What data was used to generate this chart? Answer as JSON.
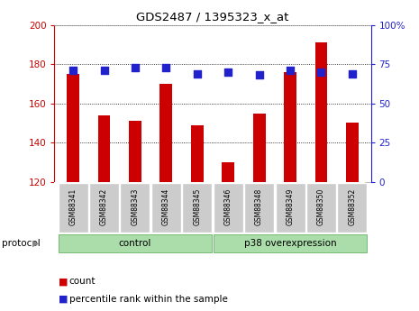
{
  "title": "GDS2487 / 1395323_x_at",
  "samples": [
    "GSM88341",
    "GSM88342",
    "GSM88343",
    "GSM88344",
    "GSM88345",
    "GSM88346",
    "GSM88348",
    "GSM88349",
    "GSM88350",
    "GSM88352"
  ],
  "counts": [
    175,
    154,
    151,
    170,
    149,
    130,
    155,
    176,
    191,
    150
  ],
  "percentiles": [
    71,
    71,
    73,
    73,
    69,
    70,
    68,
    71,
    70,
    69
  ],
  "ylim_left": [
    120,
    200
  ],
  "ylim_right": [
    0,
    100
  ],
  "yticks_left": [
    120,
    140,
    160,
    180,
    200
  ],
  "yticks_right": [
    0,
    25,
    50,
    75,
    100
  ],
  "ytick_labels_right": [
    "0",
    "25",
    "50",
    "75",
    "100%"
  ],
  "bar_color": "#cc0000",
  "dot_color": "#2222cc",
  "control_label": "control",
  "p38_label": "p38 overexpression",
  "protocol_label": "protocol",
  "legend_count": "count",
  "legend_pct": "percentile rank within the sample",
  "group_bg_color": "#aaddaa",
  "tick_bg_color": "#cccccc",
  "bar_width": 0.4,
  "dot_size": 35,
  "grid_color": "#000000"
}
